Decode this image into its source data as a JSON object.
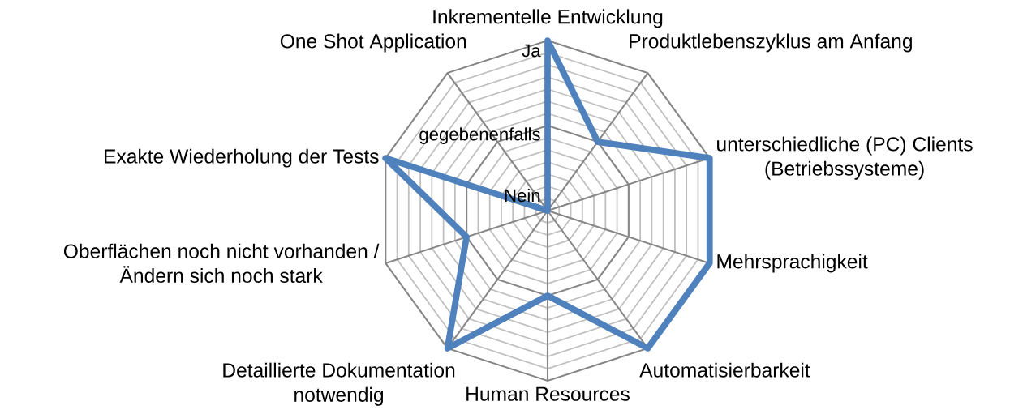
{
  "chart_data": {
    "type": "radar",
    "categories": [
      "Inkrementelle Entwicklung",
      "Produktlebenszyklus am Anfang",
      "unterschiedliche (PC) Clients (Betriebssysteme)",
      "Mehrsprachigkeit",
      "Automatisierbarkeit",
      "Human Resources",
      "Detaillierte Dokumentation notwendig",
      "Oberflächen noch nicht vorhanden / Ändern sich noch stark",
      "Exakte Wiederholung der Tests",
      "One Shot Application"
    ],
    "series": [
      {
        "color": "#4f81bd",
        "values": [
          1,
          0.5,
          1,
          1,
          1,
          0.5,
          1,
          0.5,
          1,
          0
        ]
      }
    ],
    "ylim": [
      0,
      1
    ],
    "yticks": [
      {
        "value": 0,
        "label": "Nein"
      },
      {
        "value": 0.5,
        "label": "gegebenenfalls"
      },
      {
        "value": 1,
        "label": "Ja"
      }
    ],
    "grid": true
  }
}
